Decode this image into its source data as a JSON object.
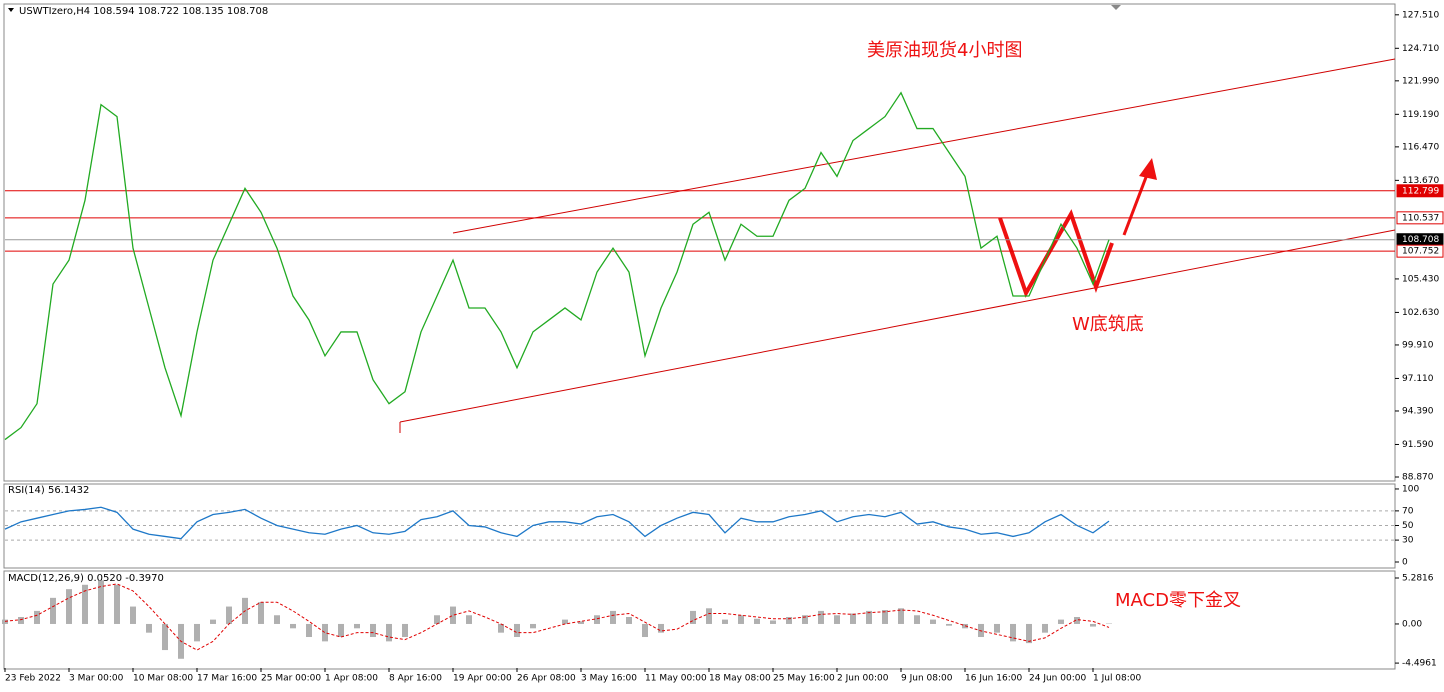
{
  "chart_data": [
    {
      "type": "line",
      "title": "USWTIzero,H4  108.594 108.722 108.135 108.708",
      "annotations": [
        "美原油现货4小时图",
        "W底筑底"
      ],
      "categories": [
        "23 Feb 2022",
        null,
        null,
        null,
        "3 Mar 00:00",
        null,
        null,
        null,
        "10 Mar 08:00",
        null,
        null,
        null,
        "17 Mar 16:00",
        null,
        null,
        null,
        "25 Mar 00:00",
        null,
        null,
        null,
        "1 Apr 08:00",
        null,
        null,
        null,
        "8 Apr 16:00",
        null,
        null,
        null,
        "19 Apr 00:00",
        null,
        null,
        null,
        "26 Apr 08:00",
        null,
        null,
        null,
        "3 May 16:00",
        null,
        null,
        null,
        "11 May 00:00",
        null,
        null,
        null,
        "18 May 08:00",
        null,
        null,
        null,
        "25 May 16:00",
        null,
        null,
        null,
        "2 Jun 00:00",
        null,
        null,
        null,
        "9 Jun 08:00",
        null,
        null,
        null,
        "16 Jun 16:00",
        null,
        null,
        null,
        "24 Jun 00:00",
        null,
        null,
        null,
        "1 Jul 08:00",
        null
      ],
      "values": [
        92,
        93,
        95,
        105,
        107,
        112,
        120,
        119,
        108,
        103,
        98,
        94,
        101,
        107,
        110,
        113,
        111,
        108,
        104,
        102,
        99,
        101,
        101,
        97,
        95,
        96,
        101,
        104,
        107,
        103,
        103,
        101,
        98,
        101,
        102,
        103,
        102,
        106,
        108,
        106,
        99,
        103,
        106,
        110,
        111,
        107,
        110,
        109,
        109,
        112,
        113,
        116,
        114,
        117,
        118,
        119,
        121,
        118,
        118,
        116,
        114,
        108,
        109,
        104,
        104,
        107,
        110,
        108,
        105,
        108.708
      ],
      "color": "#22aa22",
      "ylim": [
        88.62,
        128.33
      ],
      "yticks": [
        {
          "value": 127.51,
          "label": "127.510"
        },
        {
          "value": 124.71,
          "label": "124.710"
        },
        {
          "value": 121.99,
          "label": "121.990"
        },
        {
          "value": 119.19,
          "label": "119.190"
        },
        {
          "value": 116.47,
          "label": "116.470"
        },
        {
          "value": 113.67,
          "label": "113.670"
        },
        {
          "value": 105.43,
          "label": "105.430"
        },
        {
          "value": 102.63,
          "label": "102.630"
        },
        {
          "value": 99.91,
          "label": "99.910"
        },
        {
          "value": 97.11,
          "label": "97.110"
        },
        {
          "value": 94.39,
          "label": "94.390"
        },
        {
          "value": 91.59,
          "label": "91.590"
        },
        {
          "value": 88.87,
          "label": "88.870"
        }
      ],
      "levels": [
        {
          "value": 112.799,
          "color": "#e00000"
        },
        {
          "value": 110.537,
          "color": "#e00000"
        },
        {
          "value": 108.708,
          "color": "#999999"
        },
        {
          "value": 107.752,
          "color": "#e00000"
        }
      ]
    },
    {
      "type": "line",
      "title": "RSI(14) 56.1432",
      "values": [
        45,
        55,
        60,
        65,
        70,
        72,
        75,
        68,
        45,
        38,
        35,
        32,
        55,
        65,
        68,
        72,
        60,
        50,
        45,
        40,
        38,
        45,
        50,
        40,
        38,
        42,
        58,
        62,
        70,
        50,
        48,
        40,
        35,
        50,
        55,
        55,
        52,
        62,
        65,
        55,
        35,
        50,
        60,
        68,
        65,
        40,
        60,
        55,
        55,
        62,
        65,
        70,
        55,
        62,
        65,
        62,
        68,
        52,
        55,
        48,
        45,
        38,
        40,
        35,
        40,
        55,
        65,
        50,
        40,
        56
      ],
      "color": "#1e78c8",
      "ylim": [
        -8.2,
        106.8
      ],
      "yticks": [
        0,
        30,
        50,
        70,
        100
      ],
      "levels": [
        30,
        50,
        70
      ]
    },
    {
      "type": "bar",
      "title": "MACD(12,26,9) 0.0520 -0.3970",
      "annotations": [
        "MACD零下金叉"
      ],
      "values": [
        0.5,
        0.8,
        1.5,
        3,
        4,
        4.5,
        5,
        4.5,
        2,
        -1,
        -3,
        -4,
        -2,
        0.5,
        2,
        3,
        2.5,
        1,
        -0.5,
        -1.5,
        -2,
        -1.5,
        -0.5,
        -1.5,
        -2,
        -1.5,
        0,
        1,
        2,
        1,
        0,
        -1,
        -1.5,
        -0.5,
        0,
        0.5,
        0.3,
        1,
        1.5,
        0.8,
        -1.5,
        -1,
        0,
        1.5,
        1.8,
        0.5,
        1,
        0.6,
        0.4,
        0.8,
        1,
        1.5,
        1,
        1.2,
        1.5,
        1.6,
        1.8,
        1,
        0.5,
        -0.2,
        -0.5,
        -1.5,
        -1,
        -2,
        -2.2,
        -1,
        0.5,
        0.8,
        -0.3,
        0.052
      ],
      "color": "#b0b0b0",
      "signal": {
        "values": [
          0.3,
          0.5,
          1,
          2,
          3,
          3.8,
          4.3,
          4.6,
          3.8,
          2,
          0,
          -2,
          -3,
          -2,
          0,
          1.5,
          2.5,
          2.5,
          1.5,
          0.3,
          -1,
          -1.5,
          -1,
          -1,
          -1.5,
          -1.8,
          -1,
          0,
          1,
          1.5,
          0.8,
          0,
          -1,
          -1,
          -0.5,
          0,
          0.3,
          0.6,
          1,
          1.2,
          0.2,
          -0.8,
          -0.6,
          0.4,
          1.2,
          1.2,
          1,
          0.8,
          0.6,
          0.6,
          0.8,
          1.1,
          1.2,
          1.1,
          1.3,
          1.4,
          1.6,
          1.5,
          1,
          0.4,
          -0.2,
          -0.8,
          -1.2,
          -1.6,
          -2,
          -1.6,
          -0.5,
          0.5,
          0.3,
          -0.397
        ],
        "color": "#e00000"
      },
      "ylim": [
        -5.06,
        5.97
      ],
      "yticks": [
        5.2816,
        {
          "value": 0,
          "label": "0.00"
        },
        -4.4961
      ]
    }
  ]
}
